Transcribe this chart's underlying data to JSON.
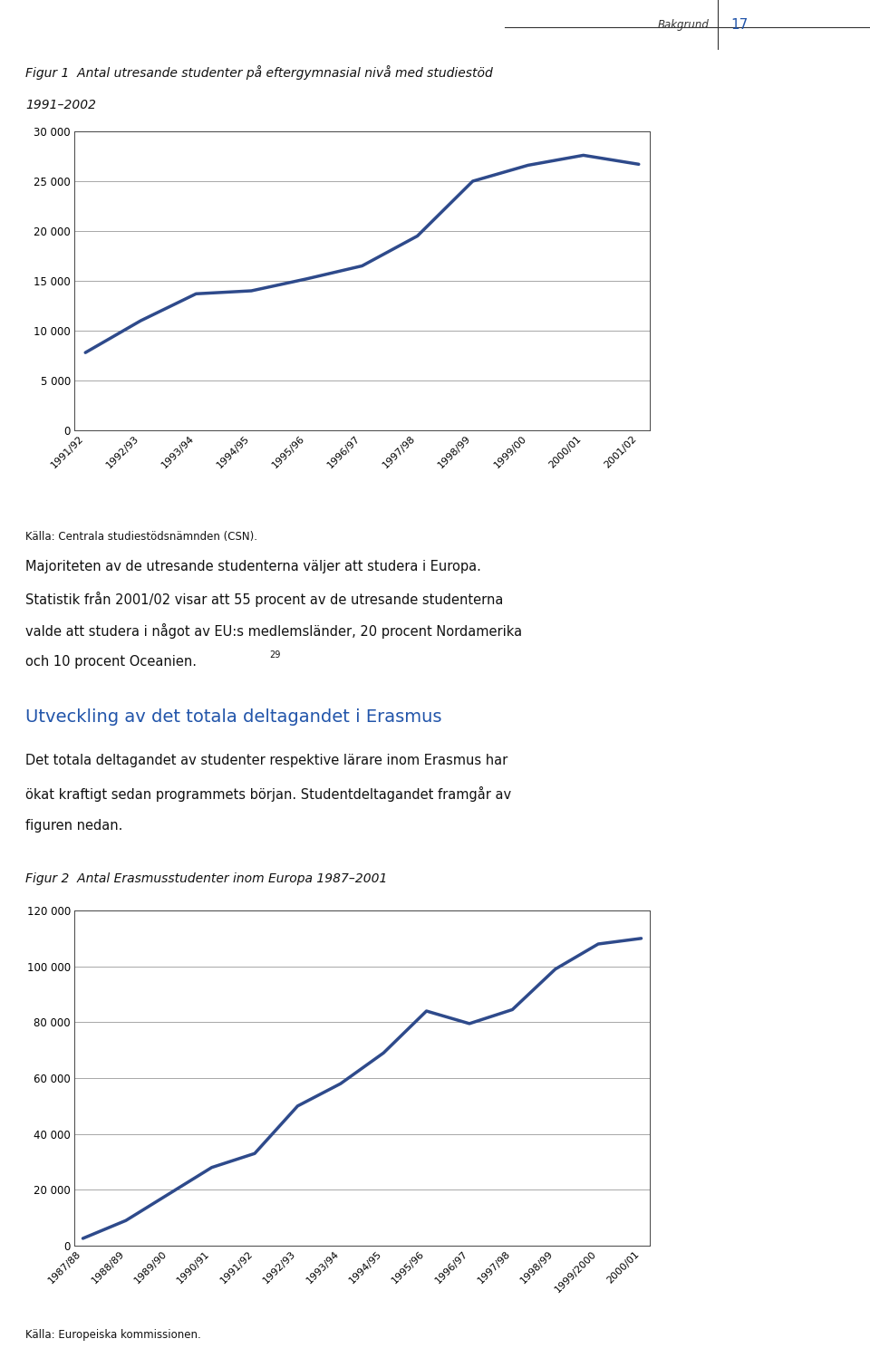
{
  "fig1_title_line1": "Figur 1  Antal utresande studenter på eftergymnasial nivå med studiestöd",
  "fig1_title_line2": "1991–2002",
  "fig1_xlabel_labels": [
    "1991/92",
    "1992/93",
    "1993/94",
    "1994/95",
    "1995/96",
    "1996/97",
    "1997/98",
    "1998/99",
    "1999/00",
    "2000/01",
    "2001/02"
  ],
  "fig1_values": [
    7800,
    11000,
    13700,
    14000,
    15200,
    16500,
    19500,
    25000,
    26600,
    27600,
    26700
  ],
  "fig1_ylim": [
    0,
    30000
  ],
  "fig1_yticks": [
    0,
    5000,
    10000,
    15000,
    20000,
    25000,
    30000
  ],
  "fig1_ytick_labels": [
    "0",
    "5 000",
    "10 000",
    "15 000",
    "20 000",
    "25 000",
    "30 000"
  ],
  "fig1_source": "Källa: Centrala studiestödsnämnden (CSN).",
  "line_color": "#2E4A8B",
  "line_width": 2.5,
  "para1_line1": "Majoriteten av de utresande studenterna väljer att studera i Europa.",
  "para1_line2": "Statistik från 2001/02 visar att 55 procent av de utresande studenterna",
  "para1_line3": "valde att studera i något av EU:s medlemsländer, 20 procent Nordamerika",
  "para1_line4": "och 10 procent Oceanien.",
  "footnote": "29",
  "section_heading": "Utveckling av det totala deltagandet i Erasmus",
  "section_heading_color": "#2255AA",
  "para2_line1": "Det totala deltagandet av studenter respektive lärare inom Erasmus har",
  "para2_line2": "ökat kraftigt sedan programmets början. Studentdeltagandet framgår av",
  "para2_line3": "figuren nedan.",
  "fig2_title": "Figur 2  Antal Erasmusstudenter inom Europa 1987–2001",
  "fig2_xlabel_labels": [
    "1987/88",
    "1988/89",
    "1989/90",
    "1990/91",
    "1991/92",
    "1992/93",
    "1993/94",
    "1994/95",
    "1995/96",
    "1996/97",
    "1997/98",
    "1998/99",
    "1999/2000",
    "2000/01"
  ],
  "fig2_values": [
    2600,
    9000,
    18500,
    28000,
    33000,
    50000,
    58000,
    69000,
    84000,
    79500,
    84500,
    99000,
    108000,
    110000
  ],
  "fig2_ylim": [
    0,
    120000
  ],
  "fig2_yticks": [
    0,
    20000,
    40000,
    60000,
    80000,
    100000,
    120000
  ],
  "fig2_ytick_labels": [
    "0",
    "20 000",
    "40 000",
    "60 000",
    "80 000",
    "100 000",
    "120 000"
  ],
  "fig2_source": "Källa: Europeiska kommissionen.",
  "header_text": "Bakgrund",
  "header_number": "17",
  "header_color": "#2255AA",
  "bg_color": "#FFFFFF",
  "grid_color": "#999999",
  "text_color": "#111111"
}
